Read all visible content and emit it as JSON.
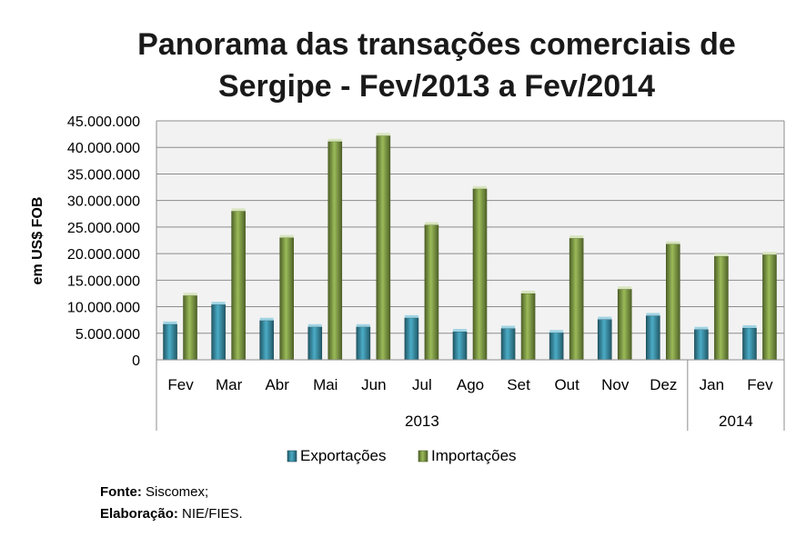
{
  "chart_data": {
    "type": "bar",
    "title_lines": [
      "Panorama das transações comerciais de",
      "Sergipe - Fev/2013 a Fev/2014"
    ],
    "ylabel": "em US$ FOB",
    "ylim": [
      0,
      45000000
    ],
    "yticks": [
      "0",
      "5.000.000",
      "10.000.000",
      "15.000.000",
      "20.000.000",
      "25.000.000",
      "30.000.000",
      "35.000.000",
      "40.000.000",
      "45.000.000"
    ],
    "categories": [
      "Fev",
      "Mar",
      "Abr",
      "Mai",
      "Jun",
      "Jul",
      "Ago",
      "Set",
      "Out",
      "Nov",
      "Dez",
      "Jan",
      "Fev"
    ],
    "groups": [
      {
        "label": "2013",
        "count": 11
      },
      {
        "label": "2014",
        "count": 2
      }
    ],
    "series": [
      {
        "name": "Exportações",
        "color": "#31859c",
        "values": [
          6700000,
          10400000,
          7400000,
          6200000,
          6200000,
          7900000,
          5300000,
          5900000,
          5100000,
          7600000,
          8300000,
          5700000,
          6000000
        ]
      },
      {
        "name": "Importações",
        "color": "#77933c",
        "values": [
          12100000,
          28000000,
          23000000,
          41100000,
          42200000,
          25400000,
          32200000,
          12500000,
          22900000,
          13300000,
          21800000,
          19500000,
          19800000
        ]
      }
    ],
    "legend": "bottom",
    "grid": true
  },
  "source": {
    "fonte_label": "Fonte:",
    "fonte_value": "Siscomex;",
    "elab_label": "Elaboração:",
    "elab_value": "NIE/FIES."
  }
}
